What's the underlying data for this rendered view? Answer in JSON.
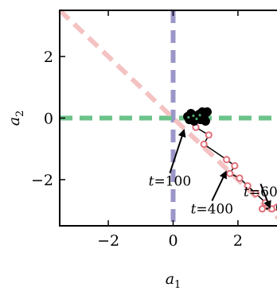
{
  "chart_data": {
    "type": "scatter",
    "xlabel": "a",
    "xlabel_sub": "1",
    "ylabel": "a",
    "ylabel_sub": "2",
    "xlim": [
      -3.5,
      3.5
    ],
    "ylim": [
      -3.5,
      3.5
    ],
    "xticks": [
      -2,
      0,
      2
    ],
    "yticks": [
      -2,
      0,
      2
    ],
    "tick_labels_x": [
      "−2",
      "0",
      "2"
    ],
    "tick_labels_y": [
      "−2",
      "0",
      "2"
    ],
    "grid": false,
    "reference_lines": [
      {
        "kind": "vertical",
        "x": 0,
        "color": "#9b96c8",
        "style": "dashed"
      },
      {
        "kind": "horizontal",
        "y": 0,
        "color": "#6cc38a",
        "style": "dashed"
      },
      {
        "kind": "diagonal",
        "from": [
          -3.5,
          3.5
        ],
        "to": [
          3.5,
          -3.5
        ],
        "color": "#f4c2c2",
        "style": "dashed"
      }
    ],
    "series": [
      {
        "marker_edge": "#e0707a",
        "marker_fill": "#ffffff",
        "line_color": "#000000",
        "points": [
          [
            0.7,
            -0.3
          ],
          [
            1.1,
            -0.55
          ],
          [
            0.95,
            -0.85
          ],
          [
            1.65,
            -1.35
          ],
          [
            1.9,
            -1.55
          ],
          [
            1.75,
            -1.8
          ],
          [
            2.05,
            -1.95
          ],
          [
            2.3,
            -2.2
          ],
          [
            2.55,
            -2.45
          ],
          [
            2.85,
            -2.75
          ],
          [
            3.05,
            -2.95
          ],
          [
            2.75,
            -2.95
          ],
          [
            3.2,
            -2.9
          ],
          [
            3.35,
            -2.9
          ]
        ]
      },
      {
        "marker_edge": "#000000",
        "marker_fill": "#4fa870",
        "cluster": [
          [
            0.45,
            0.05
          ],
          [
            0.6,
            0.1
          ],
          [
            0.7,
            0.0
          ],
          [
            0.8,
            0.12
          ],
          [
            0.95,
            0.05
          ],
          [
            1.05,
            0.2
          ],
          [
            0.5,
            -0.05
          ],
          [
            0.65,
            -0.1
          ],
          [
            0.85,
            -0.05
          ],
          [
            1.0,
            -0.1
          ],
          [
            0.55,
            0.15
          ],
          [
            0.9,
            0.2
          ]
        ]
      }
    ],
    "annotations": [
      {
        "text": "t=100",
        "text_at": [
          -0.1,
          -2.2
        ],
        "arrow_to": [
          0.35,
          -0.35
        ]
      },
      {
        "text": "t=400",
        "text_at": [
          1.2,
          -3.1
        ],
        "arrow_to": [
          1.65,
          -1.7
        ]
      },
      {
        "text": "t=60",
        "text_at": [
          2.7,
          -2.55
        ],
        "arrow_to": [
          3.0,
          -2.95
        ]
      }
    ]
  },
  "colors": {
    "vertical_line": "#9b96c8",
    "horizontal_line": "#6cc38a",
    "diagonal_line": "#f4c2c2",
    "trajectory_marker": "#e0707a",
    "cluster_marker": "#4fa870"
  }
}
